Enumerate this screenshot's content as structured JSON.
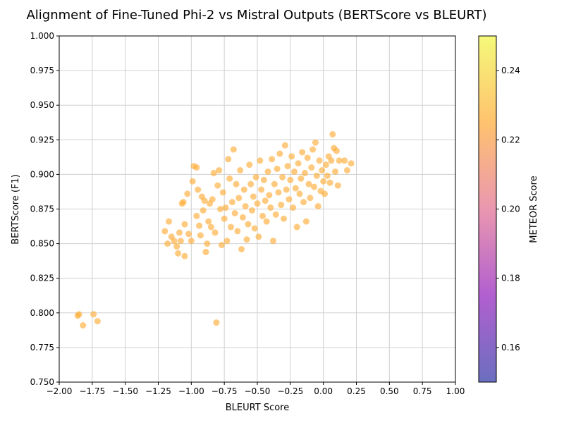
{
  "chart_data": {
    "type": "scatter",
    "title": "Alignment of Fine-Tuned Phi-2 vs Mistral Outputs (BERTScore vs BLEURT)",
    "xlabel": "BLEURT Score",
    "ylabel": "BERTScore (F1)",
    "xlim": [
      -2.0,
      1.0
    ],
    "ylim": [
      0.75,
      1.0
    ],
    "xticks": [
      "−2.00",
      "−1.75",
      "−1.50",
      "−1.25",
      "−1.00",
      "−0.75",
      "−0.50",
      "−0.25",
      "0.00",
      "0.25",
      "0.50",
      "0.75",
      "1.00"
    ],
    "yticks": [
      "0.750",
      "0.775",
      "0.800",
      "0.825",
      "0.850",
      "0.875",
      "0.900",
      "0.925",
      "0.950",
      "0.975",
      "1.000"
    ],
    "grid": true,
    "point_color": "#fdae3a",
    "point_opacity": 0.65,
    "colorbar": {
      "label": "METEOR Score",
      "range": [
        0.15,
        0.25
      ],
      "ticks": [
        "0.16",
        "0.18",
        "0.20",
        "0.22",
        "0.24"
      ],
      "colormap_stops": [
        "#6b6fbf",
        "#b15fd0",
        "#ea97b0",
        "#ffc26e",
        "#f5f97a"
      ]
    },
    "points": [
      [
        -1.86,
        0.798
      ],
      [
        -1.85,
        0.799
      ],
      [
        -1.82,
        0.791
      ],
      [
        -1.74,
        0.799
      ],
      [
        -1.71,
        0.794
      ],
      [
        -0.81,
        0.793
      ],
      [
        -1.2,
        0.859
      ],
      [
        -1.18,
        0.85
      ],
      [
        -1.17,
        0.866
      ],
      [
        -1.15,
        0.855
      ],
      [
        -1.13,
        0.852
      ],
      [
        -1.11,
        0.848
      ],
      [
        -1.1,
        0.843
      ],
      [
        -1.09,
        0.858
      ],
      [
        -1.08,
        0.852
      ],
      [
        -1.07,
        0.879
      ],
      [
        -1.06,
        0.88
      ],
      [
        -1.05,
        0.864
      ],
      [
        -1.05,
        0.841
      ],
      [
        -1.03,
        0.886
      ],
      [
        -1.02,
        0.857
      ],
      [
        -1.0,
        0.852
      ],
      [
        -0.99,
        0.895
      ],
      [
        -0.98,
        0.906
      ],
      [
        -0.96,
        0.905
      ],
      [
        -0.96,
        0.87
      ],
      [
        -0.95,
        0.889
      ],
      [
        -0.94,
        0.863
      ],
      [
        -0.93,
        0.856
      ],
      [
        -0.92,
        0.884
      ],
      [
        -0.91,
        0.874
      ],
      [
        -0.9,
        0.881
      ],
      [
        -0.89,
        0.844
      ],
      [
        -0.88,
        0.85
      ],
      [
        -0.87,
        0.866
      ],
      [
        -0.86,
        0.879
      ],
      [
        -0.85,
        0.862
      ],
      [
        -0.84,
        0.882
      ],
      [
        -0.83,
        0.901
      ],
      [
        -0.82,
        0.858
      ],
      [
        -0.8,
        0.892
      ],
      [
        -0.79,
        0.903
      ],
      [
        -0.78,
        0.875
      ],
      [
        -0.77,
        0.849
      ],
      [
        -0.76,
        0.887
      ],
      [
        -0.75,
        0.868
      ],
      [
        -0.74,
        0.876
      ],
      [
        -0.73,
        0.852
      ],
      [
        -0.72,
        0.911
      ],
      [
        -0.71,
        0.897
      ],
      [
        -0.7,
        0.862
      ],
      [
        -0.69,
        0.88
      ],
      [
        -0.68,
        0.918
      ],
      [
        -0.67,
        0.872
      ],
      [
        -0.66,
        0.893
      ],
      [
        -0.65,
        0.859
      ],
      [
        -0.64,
        0.883
      ],
      [
        -0.63,
        0.903
      ],
      [
        -0.62,
        0.846
      ],
      [
        -0.61,
        0.869
      ],
      [
        -0.6,
        0.889
      ],
      [
        -0.59,
        0.877
      ],
      [
        -0.58,
        0.853
      ],
      [
        -0.57,
        0.864
      ],
      [
        -0.56,
        0.907
      ],
      [
        -0.55,
        0.893
      ],
      [
        -0.54,
        0.874
      ],
      [
        -0.53,
        0.884
      ],
      [
        -0.52,
        0.861
      ],
      [
        -0.51,
        0.898
      ],
      [
        -0.5,
        0.879
      ],
      [
        -0.49,
        0.855
      ],
      [
        -0.48,
        0.91
      ],
      [
        -0.47,
        0.889
      ],
      [
        -0.46,
        0.87
      ],
      [
        -0.45,
        0.896
      ],
      [
        -0.44,
        0.881
      ],
      [
        -0.43,
        0.866
      ],
      [
        -0.42,
        0.902
      ],
      [
        -0.41,
        0.885
      ],
      [
        -0.4,
        0.876
      ],
      [
        -0.39,
        0.911
      ],
      [
        -0.38,
        0.852
      ],
      [
        -0.37,
        0.893
      ],
      [
        -0.36,
        0.871
      ],
      [
        -0.35,
        0.904
      ],
      [
        -0.34,
        0.887
      ],
      [
        -0.33,
        0.915
      ],
      [
        -0.32,
        0.878
      ],
      [
        -0.31,
        0.898
      ],
      [
        -0.3,
        0.868
      ],
      [
        -0.29,
        0.921
      ],
      [
        -0.28,
        0.889
      ],
      [
        -0.27,
        0.906
      ],
      [
        -0.26,
        0.882
      ],
      [
        -0.25,
        0.896
      ],
      [
        -0.24,
        0.913
      ],
      [
        -0.23,
        0.876
      ],
      [
        -0.22,
        0.902
      ],
      [
        -0.21,
        0.89
      ],
      [
        -0.2,
        0.862
      ],
      [
        -0.19,
        0.908
      ],
      [
        -0.18,
        0.886
      ],
      [
        -0.17,
        0.897
      ],
      [
        -0.16,
        0.916
      ],
      [
        -0.15,
        0.88
      ],
      [
        -0.14,
        0.901
      ],
      [
        -0.13,
        0.866
      ],
      [
        -0.12,
        0.912
      ],
      [
        -0.11,
        0.893
      ],
      [
        -0.1,
        0.883
      ],
      [
        -0.09,
        0.905
      ],
      [
        -0.08,
        0.918
      ],
      [
        -0.07,
        0.891
      ],
      [
        -0.06,
        0.923
      ],
      [
        -0.05,
        0.899
      ],
      [
        -0.04,
        0.877
      ],
      [
        -0.03,
        0.91
      ],
      [
        -0.02,
        0.888
      ],
      [
        -0.01,
        0.903
      ],
      [
        0.0,
        0.895
      ],
      [
        0.01,
        0.886
      ],
      [
        0.02,
        0.907
      ],
      [
        0.03,
        0.899
      ],
      [
        0.04,
        0.913
      ],
      [
        0.05,
        0.894
      ],
      [
        0.06,
        0.91
      ],
      [
        0.07,
        0.929
      ],
      [
        0.08,
        0.919
      ],
      [
        0.09,
        0.902
      ],
      [
        0.1,
        0.917
      ],
      [
        0.11,
        0.892
      ],
      [
        0.12,
        0.91
      ],
      [
        0.16,
        0.91
      ],
      [
        0.18,
        0.903
      ],
      [
        0.21,
        0.908
      ]
    ]
  }
}
